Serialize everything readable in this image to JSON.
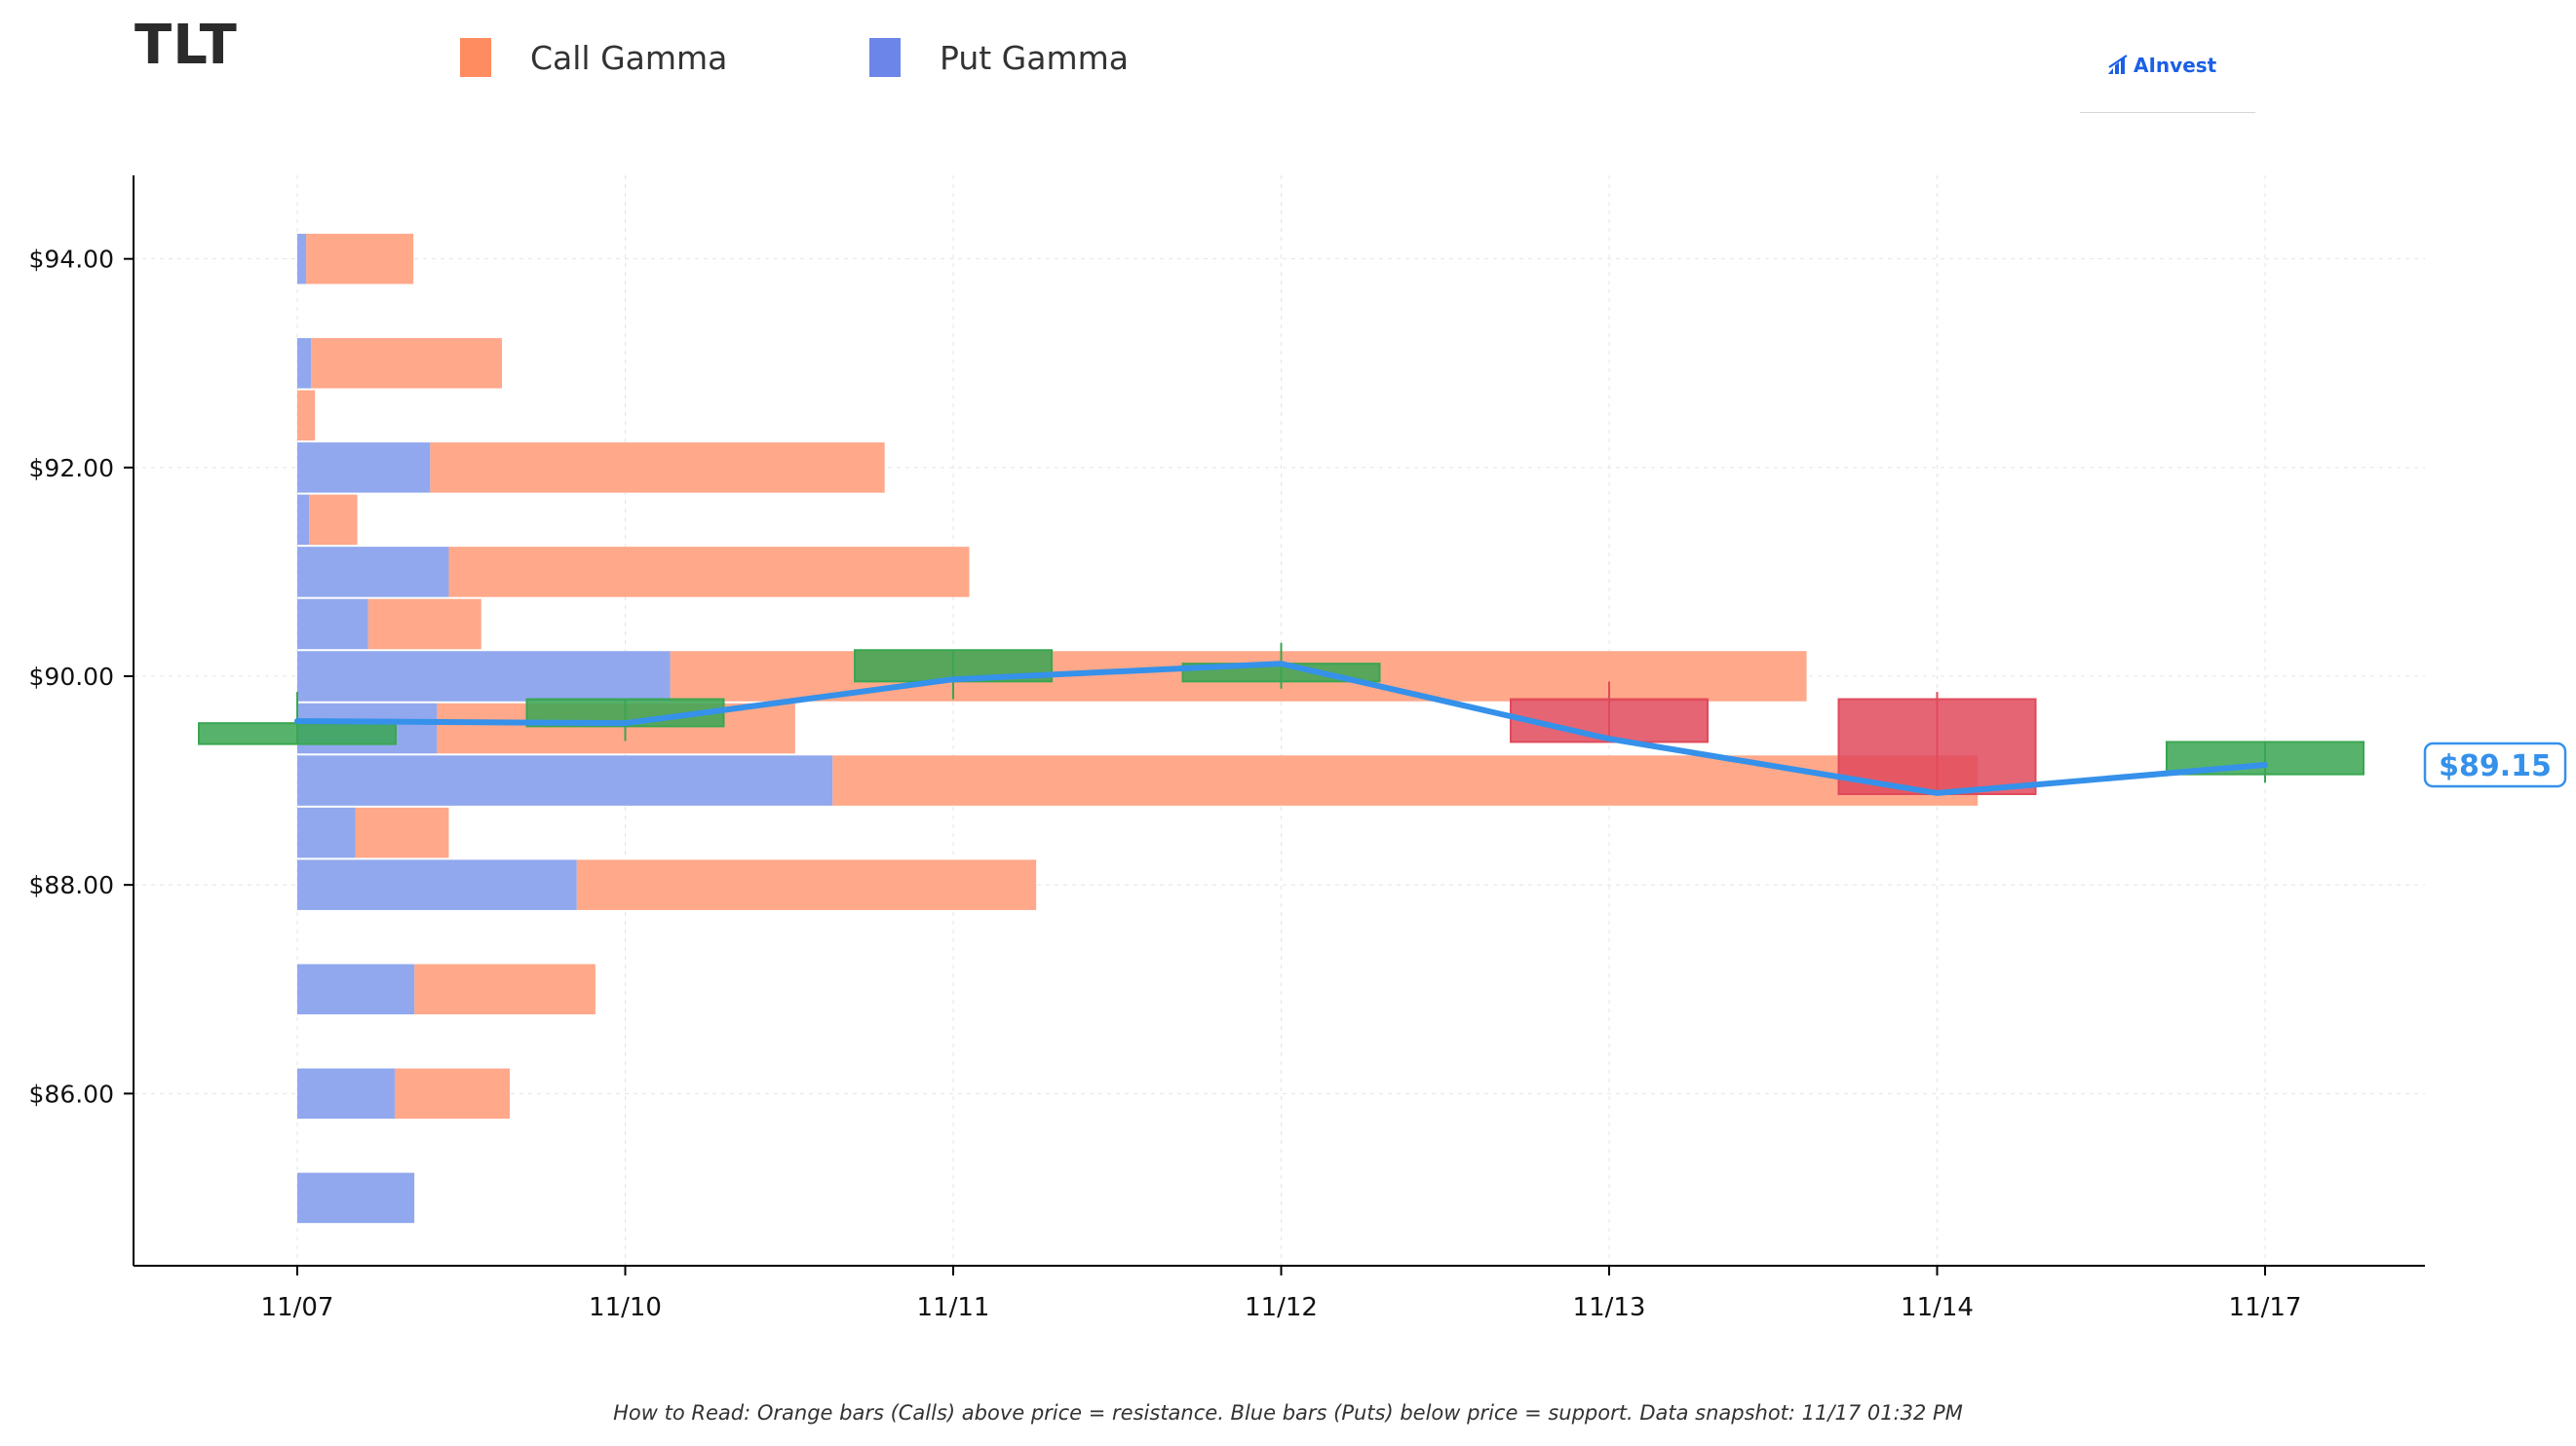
{
  "ticker": "TLT",
  "legend": {
    "call_label": "Call Gamma",
    "put_label": "Put Gamma"
  },
  "logo_text": "AInvest",
  "caption": "How to Read: Orange bars (Calls) above price = resistance. Blue bars (Puts) below price = support. Data snapshot: 11/17 01:32 PM",
  "colors": {
    "call": "#ffa384",
    "call_legend": "#ff8c61",
    "put": "#8fa6ee",
    "put_legend": "#6b86e8",
    "up": "#3aa652",
    "down": "#e04a5c",
    "line": "#3591ea",
    "logo": "#1a5fe6"
  },
  "chart_data": {
    "type": "bar",
    "title": "TLT",
    "xlabel": "",
    "ylabel": "",
    "x": [
      "11/07",
      "11/10",
      "11/11",
      "11/12",
      "11/13",
      "11/14",
      "11/17"
    ],
    "ylim": [
      84.35,
      94.8
    ],
    "y_ticks": [
      86,
      88,
      90,
      92,
      94
    ],
    "y_tick_labels": [
      "$86.00",
      "$88.00",
      "$90.00",
      "$92.00",
      "$94.00"
    ],
    "grid": true,
    "legend_position": "top",
    "gamma_units": "fraction of 11/07–11/12 span",
    "gamma_bars": [
      {
        "strike": 94.0,
        "put": 0.009,
        "call": 0.109
      },
      {
        "strike": 93.0,
        "put": 0.014,
        "call": 0.194
      },
      {
        "strike": 92.5,
        "put": 0.0,
        "call": 0.018
      },
      {
        "strike": 92.0,
        "put": 0.135,
        "call": 0.462
      },
      {
        "strike": 91.5,
        "put": 0.012,
        "call": 0.049
      },
      {
        "strike": 91.0,
        "put": 0.154,
        "call": 0.529
      },
      {
        "strike": 90.5,
        "put": 0.072,
        "call": 0.115
      },
      {
        "strike": 90.0,
        "put": 0.379,
        "call": 1.155
      },
      {
        "strike": 89.5,
        "put": 0.142,
        "call": 0.364
      },
      {
        "strike": 89.0,
        "put": 0.544,
        "call": 1.164
      },
      {
        "strike": 88.5,
        "put": 0.059,
        "call": 0.095
      },
      {
        "strike": 88.0,
        "put": 0.284,
        "call": 0.467
      },
      {
        "strike": 87.0,
        "put": 0.119,
        "call": 0.184
      },
      {
        "strike": 86.0,
        "put": 0.099,
        "call": 0.117
      },
      {
        "strike": 85.0,
        "put": 0.119,
        "call": 0.0
      }
    ],
    "candles": [
      {
        "date": "11/07",
        "open": 89.35,
        "close": 89.55,
        "high": 89.85,
        "low": 89.35
      },
      {
        "date": "11/10",
        "open": 89.52,
        "close": 89.78,
        "high": 89.78,
        "low": 89.38
      },
      {
        "date": "11/11",
        "open": 89.95,
        "close": 90.25,
        "high": 90.25,
        "low": 89.78
      },
      {
        "date": "11/12",
        "open": 89.95,
        "close": 90.12,
        "high": 90.32,
        "low": 89.88
      },
      {
        "date": "11/13",
        "open": 89.78,
        "close": 89.37,
        "high": 89.95,
        "low": 89.37
      },
      {
        "date": "11/14",
        "open": 89.78,
        "close": 88.87,
        "high": 89.85,
        "low": 88.87
      },
      {
        "date": "11/17",
        "open": 89.06,
        "close": 89.37,
        "high": 89.37,
        "low": 88.98
      }
    ],
    "price_line": [
      89.57,
      89.55,
      89.97,
      90.12,
      89.4,
      88.88,
      89.15
    ],
    "last_price": 89.15,
    "last_price_label": "$89.15"
  }
}
